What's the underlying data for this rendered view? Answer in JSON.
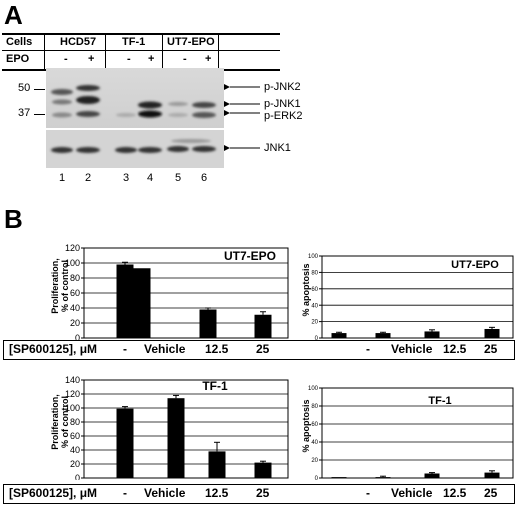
{
  "panel_a": {
    "letter": "A",
    "header": {
      "cells_label": "Cells",
      "epo_label": "EPO",
      "cell_lines": [
        "HCD57",
        "TF-1",
        "UT7-EPO"
      ],
      "epo_states": [
        "-",
        "+",
        "-",
        "+",
        "-",
        "+"
      ]
    },
    "mw_markers": [
      "50",
      "37"
    ],
    "band_labels": [
      "p-JNK2",
      "p-JNK1",
      "p-ERK2",
      "JNK1"
    ],
    "lane_numbers": [
      "1",
      "2",
      "3",
      "4",
      "5",
      "6"
    ]
  },
  "panel_b": {
    "letter": "B",
    "treatment_label": "[SP600125], μM",
    "treatment_levels": [
      "-",
      "Vehicle",
      "12.5",
      "25"
    ]
  },
  "chart_data": [
    {
      "type": "bar",
      "title": "UT7-EPO",
      "ylabel": "Proliferation, % of control",
      "categories": [
        "-",
        "Vehicle",
        "12.5",
        "25"
      ],
      "values": [
        98,
        93,
        38,
        31
      ],
      "errors": [
        3,
        0,
        2,
        4
      ],
      "ylim": [
        0,
        120
      ],
      "yticks": [
        0,
        20,
        40,
        60,
        80,
        100,
        120
      ],
      "yticklabels": [
        "0",
        "20",
        "40",
        "60",
        "80",
        "100",
        "120"
      ],
      "grid": true
    },
    {
      "type": "bar",
      "title": "UT7-EPO",
      "ylabel": "% apoptosis",
      "categories": [
        "-",
        "Vehicle",
        "12.5",
        "25"
      ],
      "values": [
        6,
        6,
        8,
        11
      ],
      "errors": [
        1,
        1,
        2,
        2
      ],
      "ylim": [
        0,
        100
      ],
      "yticks": [
        0,
        20,
        40,
        60,
        80,
        100
      ],
      "yticklabels": [
        "0",
        "20",
        "40",
        "60",
        "80",
        "100"
      ],
      "grid": true
    },
    {
      "type": "bar",
      "title": "TF-1",
      "ylabel": "Proliferation, % of control",
      "categories": [
        "-",
        "Vehicle",
        "12.5",
        "25"
      ],
      "values": [
        99,
        114,
        38,
        22
      ],
      "errors": [
        3,
        4,
        13,
        2
      ],
      "ylim": [
        0,
        140
      ],
      "yticks": [
        0,
        20,
        40,
        60,
        80,
        100,
        120,
        140
      ],
      "yticklabels": [
        "0",
        "20",
        "40",
        "60",
        "80",
        "100",
        "120",
        "140"
      ],
      "grid": true
    },
    {
      "type": "bar",
      "title": "TF-1",
      "ylabel": "% apoptosis",
      "categories": [
        "-",
        "Vehicle",
        "12.5",
        "25"
      ],
      "values": [
        1,
        1,
        5,
        6
      ],
      "errors": [
        0,
        1,
        1,
        2
      ],
      "ylim": [
        0,
        100
      ],
      "yticks": [
        0,
        20,
        40,
        60,
        80,
        100
      ],
      "yticklabels": [
        "0",
        "20",
        "40",
        "60",
        "80",
        "100"
      ],
      "grid": true
    }
  ]
}
